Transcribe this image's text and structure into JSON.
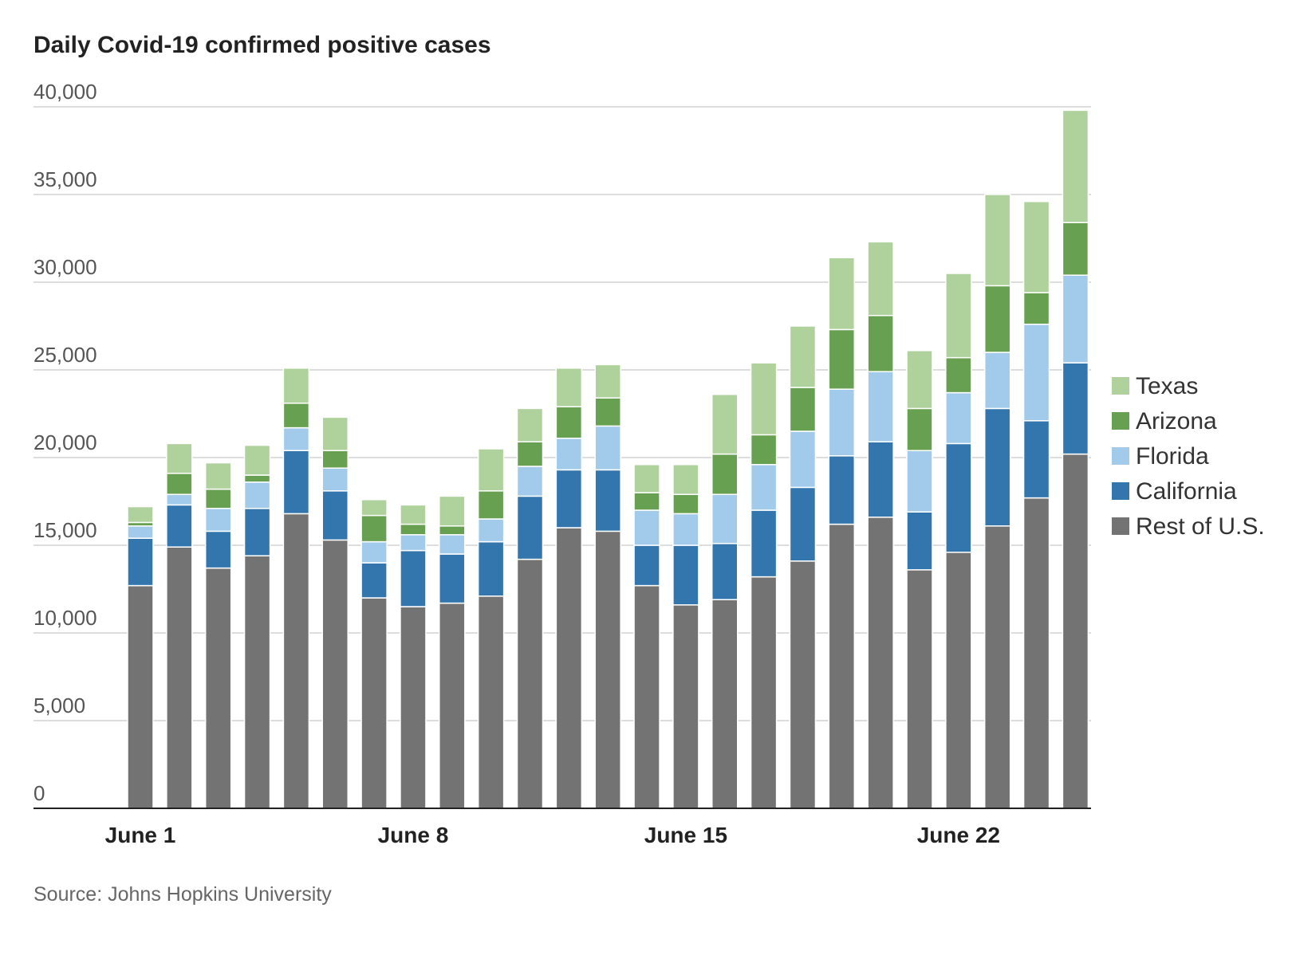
{
  "title": "Daily Covid-19 confirmed positive cases",
  "source": "Source: Johns Hopkins University",
  "chart_data": {
    "type": "bar",
    "stacked": true,
    "title": "Daily Covid-19 confirmed positive cases",
    "xlabel": "",
    "ylabel": "",
    "ylim": [
      0,
      40000
    ],
    "yticks": [
      0,
      5000,
      10000,
      15000,
      20000,
      25000,
      30000,
      35000,
      40000
    ],
    "ytick_labels": [
      "0",
      "5,000",
      "10,000",
      "15,000",
      "20,000",
      "25,000",
      "30,000",
      "35,000",
      "40,000"
    ],
    "grid": true,
    "legend_position": "right",
    "categories": [
      "June 1",
      "June 2",
      "June 3",
      "June 4",
      "June 5",
      "June 6",
      "June 7",
      "June 8",
      "June 9",
      "June 10",
      "June 11",
      "June 12",
      "June 13",
      "June 14",
      "June 15",
      "June 16",
      "June 17",
      "June 18",
      "June 19",
      "June 20",
      "June 21",
      "June 22",
      "June 23",
      "June 24",
      "June 25"
    ],
    "x_tick_labels": [
      {
        "index": 0,
        "label": "June 1"
      },
      {
        "index": 7,
        "label": "June 8"
      },
      {
        "index": 14,
        "label": "June 15"
      },
      {
        "index": 21,
        "label": "June 22"
      }
    ],
    "series": [
      {
        "name": "Rest of U.S.",
        "color": "#737373",
        "values": [
          12700,
          14900,
          13700,
          14400,
          16800,
          15300,
          12000,
          11500,
          11700,
          12100,
          14200,
          16000,
          15800,
          12700,
          11600,
          11900,
          13200,
          14100,
          16200,
          16600,
          13600,
          14600,
          16100,
          17700,
          20200
        ]
      },
      {
        "name": "California",
        "color": "#3276ad",
        "values": [
          2700,
          2400,
          2100,
          2700,
          3600,
          2800,
          2000,
          3200,
          2800,
          3100,
          3600,
          3300,
          3500,
          2300,
          3400,
          3200,
          3800,
          4200,
          3900,
          4300,
          3300,
          6200,
          6700,
          4400,
          5200
        ]
      },
      {
        "name": "Florida",
        "color": "#a2cbeb",
        "values": [
          700,
          600,
          1300,
          1500,
          1300,
          1300,
          1200,
          900,
          1100,
          1300,
          1700,
          1800,
          2500,
          2000,
          1800,
          2800,
          2600,
          3200,
          3800,
          4000,
          3500,
          2900,
          3200,
          5500,
          5000
        ]
      },
      {
        "name": "Arizona",
        "color": "#67a050",
        "values": [
          200,
          1200,
          1100,
          400,
          1400,
          1000,
          1500,
          600,
          500,
          1600,
          1400,
          1800,
          1600,
          1000,
          1100,
          2300,
          1700,
          2500,
          3400,
          3200,
          2400,
          2000,
          3800,
          1800,
          3000
        ]
      },
      {
        "name": "Texas",
        "color": "#afd19b",
        "values": [
          900,
          1700,
          1500,
          1700,
          2000,
          1900,
          900,
          1100,
          1700,
          2400,
          1900,
          2200,
          1900,
          1600,
          1700,
          3400,
          4100,
          3500,
          4100,
          4200,
          3300,
          4800,
          5200,
          5200,
          6400
        ]
      }
    ],
    "legend": [
      "Texas",
      "Arizona",
      "Florida",
      "California",
      "Rest of U.S."
    ]
  }
}
